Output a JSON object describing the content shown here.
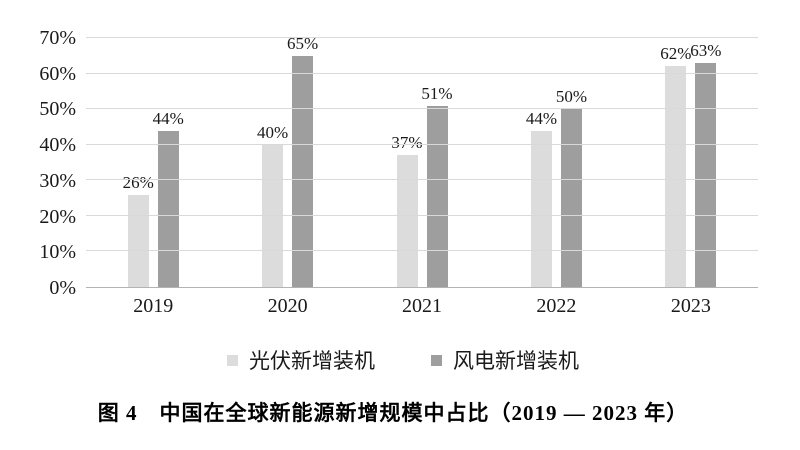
{
  "figure": {
    "caption": "图 4　中国在全球新能源新增规模中占比（2019 — 2023 年）"
  },
  "colors": {
    "background": "#ffffff",
    "gridline": "#d9d9d9",
    "axis_line": "#b3b3b3",
    "text": "#1a1a1a",
    "series_pv": "#dcdcdc",
    "series_wind": "#9e9e9e"
  },
  "chart_data": {
    "type": "bar",
    "title": "图 4　中国在全球新能源新增规模中占比（2019 — 2023 年）",
    "categories": [
      "2019",
      "2020",
      "2021",
      "2022",
      "2023"
    ],
    "series": [
      {
        "key": "pv",
        "name": "光伏新增装机",
        "color": "#dcdcdc",
        "values": [
          26,
          40,
          37,
          44,
          62
        ],
        "labels": [
          "26%",
          "40%",
          "37%",
          "44%",
          "62%"
        ]
      },
      {
        "key": "wind",
        "name": "风电新增装机",
        "color": "#9e9e9e",
        "values": [
          44,
          65,
          51,
          50,
          63
        ],
        "labels": [
          "44%",
          "65%",
          "51%",
          "50%",
          "63%"
        ]
      }
    ],
    "value_suffix": "%",
    "xlabel": "",
    "ylabel": "",
    "ylim": [
      0,
      70
    ],
    "ytick_values": [
      0,
      10,
      20,
      30,
      40,
      50,
      60,
      70
    ],
    "ytick_labels": [
      "0%",
      "10%",
      "20%",
      "30%",
      "40%",
      "50%",
      "60%",
      "70%"
    ],
    "grid": true,
    "legend_position": "bottom"
  }
}
